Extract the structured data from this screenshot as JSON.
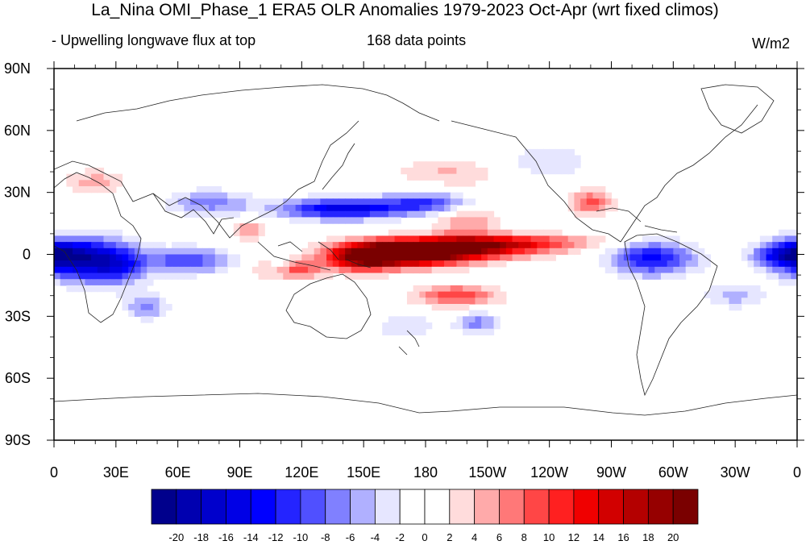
{
  "title": "La_Nina OMI_Phase_1 ERA5 OLR Anomalies 1979-2023 Oct-Apr (wrt fixed climos)",
  "subtitle_left": "- Upwelling longwave flux at top",
  "subtitle_center": "168 data points",
  "units": "W/m2",
  "x_tick_labels": [
    "0",
    "30E",
    "60E",
    "90E",
    "120E",
    "150E",
    "180",
    "150W",
    "120W",
    "90W",
    "60W",
    "30W",
    "0"
  ],
  "y_tick_labels": [
    "90N",
    "60N",
    "30N",
    "0",
    "30S",
    "60S",
    "90S"
  ],
  "colorbar": {
    "labels": [
      "-20",
      "-18",
      "-16",
      "-14",
      "-12",
      "-10",
      "-8",
      "-6",
      "-4",
      "-2",
      "0",
      "2",
      "4",
      "6",
      "8",
      "10",
      "12",
      "14",
      "16",
      "18",
      "20"
    ],
    "colors": [
      "#00008c",
      "#0000b0",
      "#0000cc",
      "#0000e6",
      "#0000ff",
      "#2424ff",
      "#5050ff",
      "#8080ff",
      "#b0b0ff",
      "#e6e6ff",
      "#ffffff",
      "#ffffff",
      "#ffdcdc",
      "#ffaaaa",
      "#ff7878",
      "#ff4646",
      "#ff2020",
      "#f00000",
      "#d20000",
      "#b40000",
      "#960000",
      "#7a0000"
    ]
  },
  "chart_data": {
    "type": "heatmap",
    "title": "La_Nina OMI_Phase_1 ERA5 OLR Anomalies 1979-2023 Oct-Apr (wrt fixed climos)",
    "variable": "Upwelling longwave flux at top",
    "units": "W/m2",
    "n_points": 168,
    "lon_range": [
      0,
      360
    ],
    "lat_range": [
      -90,
      90
    ],
    "color_levels": [
      -20,
      -18,
      -16,
      -14,
      -12,
      -10,
      -8,
      -6,
      -4,
      -2,
      0,
      2,
      4,
      6,
      8,
      10,
      12,
      14,
      16,
      18,
      20
    ],
    "anomaly_features": [
      {
        "lon": 170,
        "lat": 0,
        "value": 22,
        "rlon": 30,
        "rlat": 6
      },
      {
        "lon": 195,
        "lat": 3,
        "value": 16,
        "rlon": 40,
        "rlat": 5
      },
      {
        "lon": 150,
        "lat": -2,
        "value": 14,
        "rlon": 15,
        "rlat": 6
      },
      {
        "lon": 225,
        "lat": 6,
        "value": 8,
        "rlon": 40,
        "rlat": 4
      },
      {
        "lon": 200,
        "lat": 18,
        "value": 6,
        "rlon": 15,
        "rlat": 12
      },
      {
        "lon": 195,
        "lat": -20,
        "value": 10,
        "rlon": 20,
        "rlat": 5
      },
      {
        "lon": 260,
        "lat": 25,
        "value": 9,
        "rlon": 10,
        "rlat": 6
      },
      {
        "lon": 115,
        "lat": -7,
        "value": 10,
        "rlon": 15,
        "rlat": 5
      },
      {
        "lon": 95,
        "lat": 12,
        "value": 6,
        "rlon": 8,
        "rlat": 5
      },
      {
        "lon": 20,
        "lat": 35,
        "value": 5,
        "rlon": 15,
        "rlat": 6
      },
      {
        "lon": 190,
        "lat": 40,
        "value": 4,
        "rlon": 25,
        "rlat": 6
      },
      {
        "lon": 140,
        "lat": 22,
        "value": -15,
        "rlon": 30,
        "rlat": 5
      },
      {
        "lon": 185,
        "lat": 25,
        "value": -10,
        "rlon": 25,
        "rlat": 5
      },
      {
        "lon": 10,
        "lat": -2,
        "value": -16,
        "rlon": 20,
        "rlat": 10
      },
      {
        "lon": 30,
        "lat": -5,
        "value": -11,
        "rlon": 15,
        "rlat": 10
      },
      {
        "lon": 65,
        "lat": -3,
        "value": -10,
        "rlon": 20,
        "rlat": 6
      },
      {
        "lon": 45,
        "lat": -25,
        "value": -7,
        "rlon": 10,
        "rlat": 6
      },
      {
        "lon": 290,
        "lat": -2,
        "value": -13,
        "rlon": 20,
        "rlat": 8
      },
      {
        "lon": 355,
        "lat": 0,
        "value": -12,
        "rlon": 15,
        "rlat": 6
      },
      {
        "lon": 75,
        "lat": 25,
        "value": -7,
        "rlon": 20,
        "rlat": 6
      },
      {
        "lon": 110,
        "lat": -5,
        "value": -6,
        "rlon": 6,
        "rlat": 5
      },
      {
        "lon": 205,
        "lat": -33,
        "value": -7,
        "rlon": 10,
        "rlat": 5
      },
      {
        "lon": 170,
        "lat": -35,
        "value": -4,
        "rlon": 15,
        "rlat": 6
      },
      {
        "lon": 240,
        "lat": 45,
        "value": -4,
        "rlon": 20,
        "rlat": 8
      },
      {
        "lon": 330,
        "lat": -20,
        "value": -5,
        "rlon": 15,
        "rlat": 6
      }
    ]
  }
}
